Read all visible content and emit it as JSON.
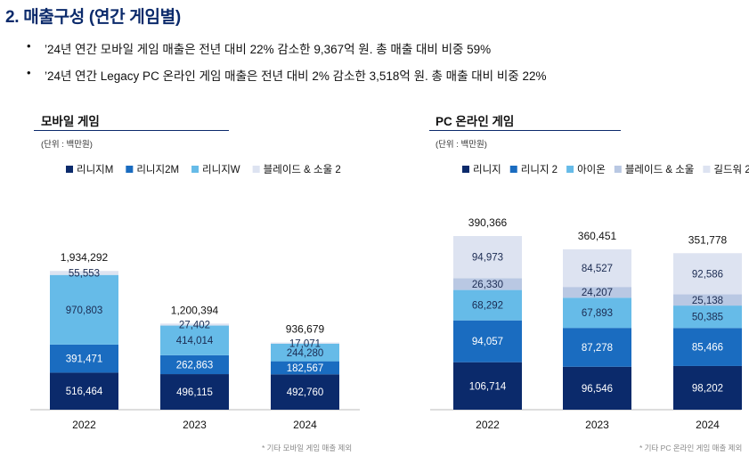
{
  "page": {
    "title": "2. 매출구성 (연간 게임별)",
    "bullets": [
      "’24년 연간 모바일 게임 매출은 전년 대비 22% 감소한 9,367억 원. 총 매출 대비 비중 59%",
      "’24년 연간 Legacy PC 온라인 게임 매출은 전년 대비 2% 감소한 3,518억 원. 총 매출 대비 비중 22%"
    ],
    "bullet_symbol": "•"
  },
  "colors": {
    "navy": "#0b2a6b",
    "blue": "#1a6cc0",
    "sky": "#66bbe8",
    "pale_blue": "#b9c8e3",
    "pale": "#dde3f1",
    "text_in_dark": "#ffffff",
    "text_in_light": "#1b2b52"
  },
  "chart_data": [
    {
      "type": "bar",
      "stacked": true,
      "title": "모바일 게임",
      "unit": "(단위 : 백만원)",
      "note": "* 기타 모바일 게임 매출 제외",
      "categories": [
        "2022",
        "2023",
        "2024"
      ],
      "totals": [
        "1,934,292",
        "1,200,394",
        "936,679"
      ],
      "series": [
        {
          "name": "리니지M",
          "color": "#0b2a6b",
          "values": [
            516464,
            496115,
            492760
          ],
          "labels": [
            "516,464",
            "496,115",
            "492,760"
          ]
        },
        {
          "name": "리니지2M",
          "color": "#1a6cc0",
          "values": [
            391471,
            262863,
            182567
          ],
          "labels": [
            "391,471",
            "262,863",
            "182,567"
          ]
        },
        {
          "name": "리니지W",
          "color": "#66bbe8",
          "values": [
            970803,
            414014,
            244280
          ],
          "labels": [
            "970,803",
            "414,014",
            "244,280"
          ]
        },
        {
          "name": "블레이드 & 소울 2",
          "color": "#dde3f1",
          "values": [
            55553,
            27402,
            17071
          ],
          "labels": [
            "55,553",
            "27,402",
            "17,071"
          ]
        }
      ],
      "ylim": [
        0,
        2000000
      ]
    },
    {
      "type": "bar",
      "stacked": true,
      "title": "PC 온라인 게임",
      "unit": "(단위 : 백만원)",
      "note": "* 기타 PC 온라인 게임 매출 제외",
      "categories": [
        "2022",
        "2023",
        "2024"
      ],
      "totals": [
        "390,366",
        "360,451",
        "351,778"
      ],
      "series": [
        {
          "name": "리니지",
          "color": "#0b2a6b",
          "values": [
            106714,
            96546,
            98202
          ],
          "labels": [
            "106,714",
            "96,546",
            "98,202"
          ]
        },
        {
          "name": "리니지 2",
          "color": "#1a6cc0",
          "values": [
            94057,
            87278,
            85466
          ],
          "labels": [
            "94,057",
            "87,278",
            "85,466"
          ]
        },
        {
          "name": "아이온",
          "color": "#66bbe8",
          "values": [
            68292,
            67893,
            50385
          ],
          "labels": [
            "68,292",
            "67,893",
            "50,385"
          ]
        },
        {
          "name": "블레이드 & 소울",
          "color": "#b9c8e3",
          "values": [
            26330,
            24207,
            25138
          ],
          "labels": [
            "26,330",
            "24,207",
            "25,138"
          ]
        },
        {
          "name": "길드워 2",
          "color": "#dde3f1",
          "values": [
            94973,
            84527,
            92586
          ],
          "labels": [
            "94,973",
            "84,527",
            "92,586"
          ]
        }
      ],
      "ylim": [
        0,
        400000
      ]
    }
  ]
}
